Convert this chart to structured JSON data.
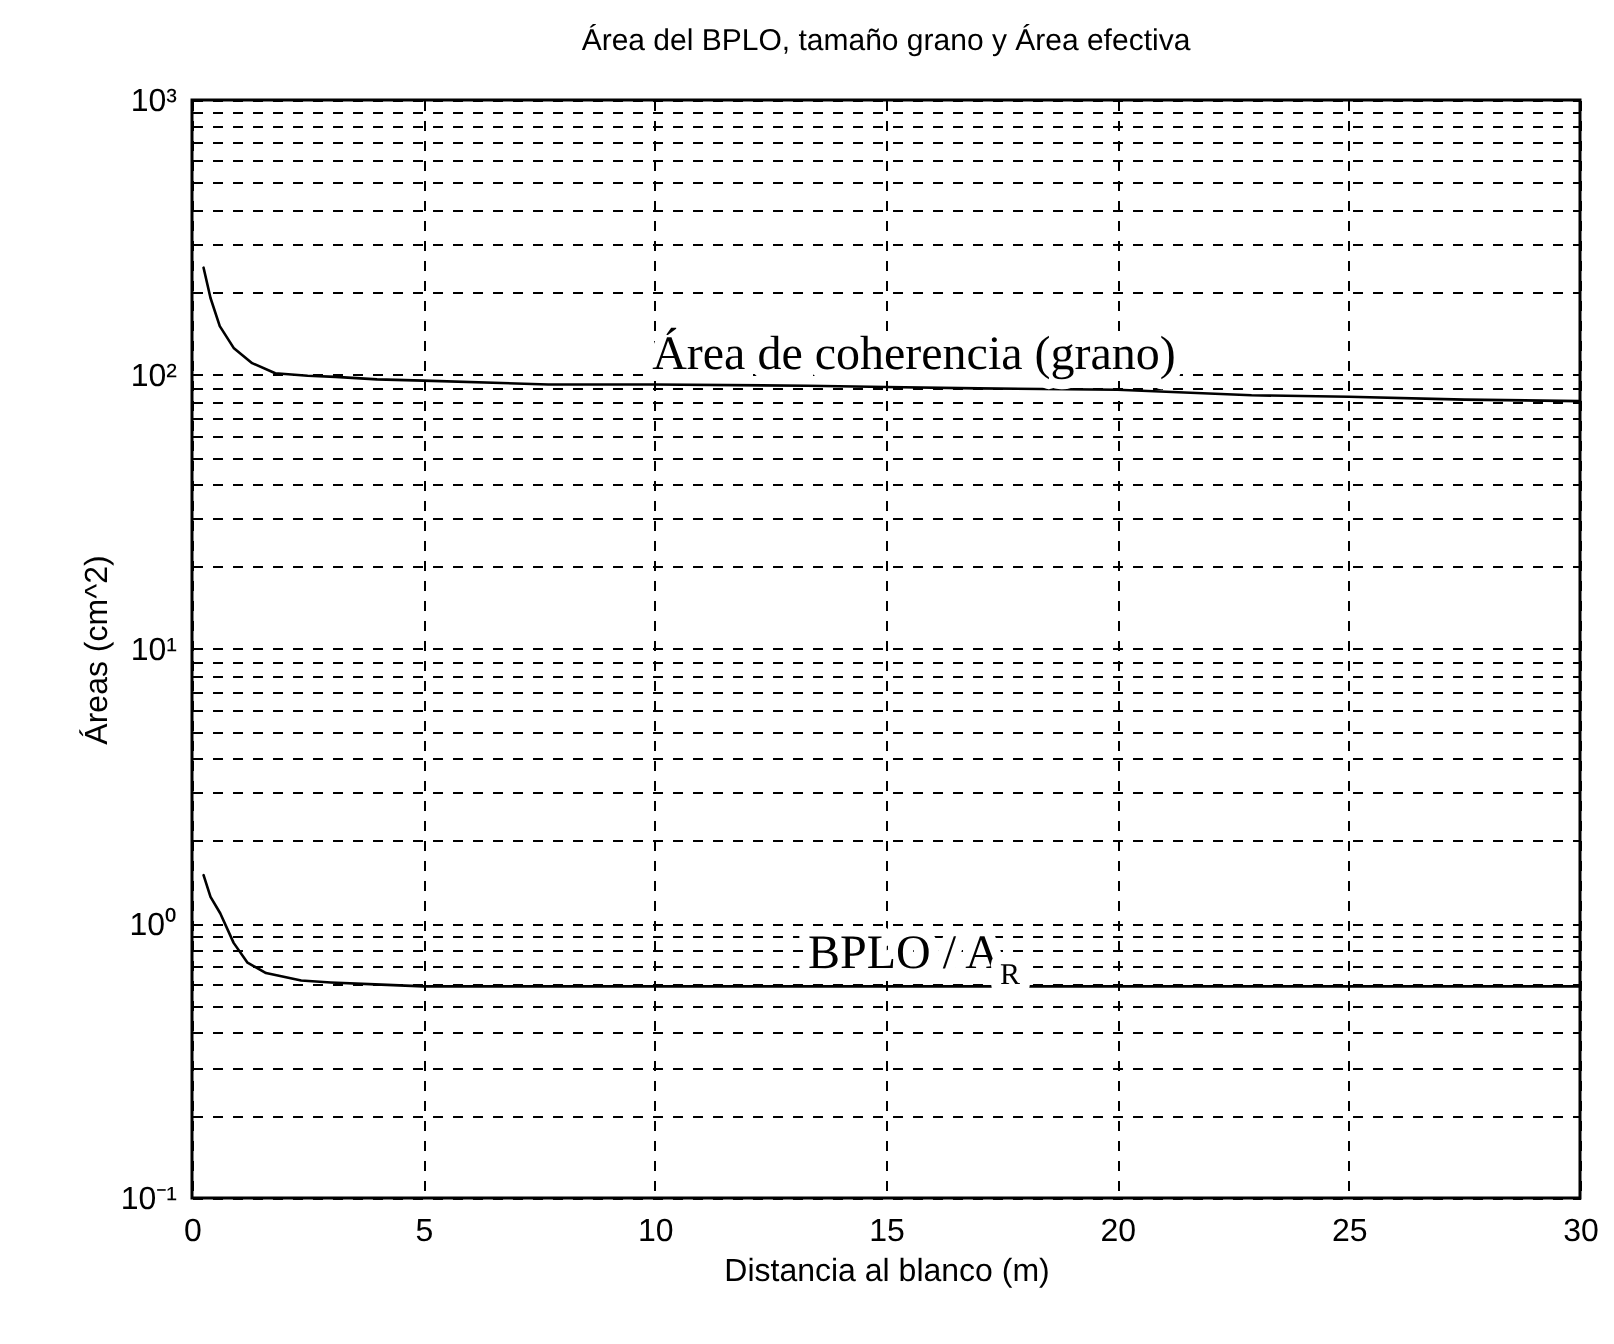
{
  "chart_data": {
    "type": "line",
    "title": "Área del BPLO, tamaño grano y Área efectiva",
    "xlabel": "Distancia al blanco (m)",
    "ylabel": "Áreas (cm^2)",
    "series": [
      {
        "name": "Área de coherencia (grano)",
        "color": "#000000",
        "x": [
          0.25,
          0.4,
          0.6,
          0.9,
          1.3,
          1.8,
          2.5,
          3.1,
          4,
          5,
          7.7,
          10,
          13.3,
          15,
          17,
          20,
          22.9,
          25,
          27.5,
          30
        ],
        "values": [
          245,
          190,
          150,
          125,
          110,
          101,
          99,
          98,
          96,
          95,
          92,
          92,
          91,
          90,
          89,
          88,
          84,
          83,
          81,
          80
        ]
      },
      {
        "name": "BPLO / A$_{R}$",
        "color": "#000000",
        "x": [
          0.25,
          0.4,
          0.61,
          0.9,
          1.2,
          1.6,
          2.36,
          3,
          3.96,
          5,
          10,
          15,
          20,
          25,
          30
        ],
        "values": [
          1.5,
          1.25,
          1.09,
          0.85,
          0.72,
          0.66,
          0.62,
          0.61,
          0.6,
          0.59,
          0.59,
          0.59,
          0.59,
          0.59,
          0.59
        ]
      }
    ],
    "log": "y",
    "grid": true,
    "marker": "none",
    "line_style": "solid",
    "xlim": [
      0,
      30
    ],
    "xticks": [
      0,
      5,
      10,
      15,
      20,
      25,
      30
    ],
    "ylim": [
      0.1,
      1000
    ],
    "yticks": [
      {
        "value": 0.1,
        "label": "10⁻¹"
      },
      {
        "value": 0.2,
        "label": null
      },
      {
        "value": 0.3,
        "label": null
      },
      {
        "value": 0.4,
        "label": null
      },
      {
        "value": 0.5,
        "label": null
      },
      {
        "value": 0.6,
        "label": null
      },
      {
        "value": 0.7,
        "label": null
      },
      {
        "value": 0.8,
        "label": null
      },
      {
        "value": 0.9,
        "label": null
      },
      {
        "value": 1,
        "label": "10⁰"
      },
      {
        "value": 2,
        "label": null
      },
      {
        "value": 3,
        "label": null
      },
      {
        "value": 4,
        "label": null
      },
      {
        "value": 5,
        "label": null
      },
      {
        "value": 6,
        "label": null
      },
      {
        "value": 7,
        "label": null
      },
      {
        "value": 8,
        "label": null
      },
      {
        "value": 9,
        "label": null
      },
      {
        "value": 10,
        "label": "10¹"
      },
      {
        "value": 20,
        "label": null
      },
      {
        "value": 30,
        "label": null
      },
      {
        "value": 40,
        "label": null
      },
      {
        "value": 50,
        "label": null
      },
      {
        "value": 60,
        "label": null
      },
      {
        "value": 70,
        "label": null
      },
      {
        "value": 80,
        "label": null
      },
      {
        "value": 90,
        "label": null
      },
      {
        "value": 100,
        "label": "10²"
      },
      {
        "value": 200,
        "label": null
      },
      {
        "value": 300,
        "label": null
      },
      {
        "value": 400,
        "label": null
      },
      {
        "value": 500,
        "label": null
      },
      {
        "value": 600,
        "label": null
      },
      {
        "value": 700,
        "label": null
      },
      {
        "value": 800,
        "label": null
      },
      {
        "value": 900,
        "label": null
      },
      {
        "value": 1000,
        "label": "10³"
      }
    ]
  }
}
